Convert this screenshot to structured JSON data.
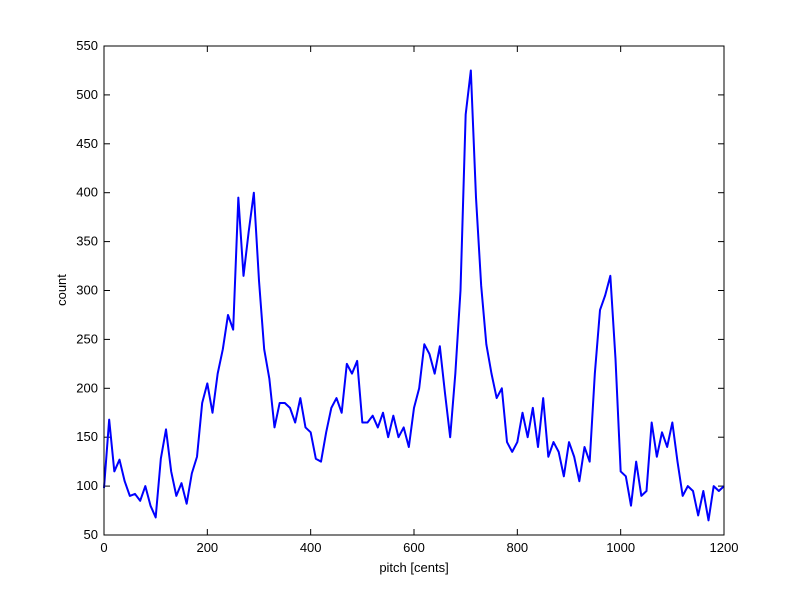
{
  "chart_data": {
    "type": "line",
    "x_label": "pitch [cents]",
    "y_label": "count",
    "x": [
      0,
      10,
      20,
      30,
      40,
      50,
      60,
      70,
      80,
      90,
      100,
      110,
      120,
      130,
      140,
      150,
      160,
      170,
      180,
      190,
      200,
      210,
      220,
      230,
      240,
      250,
      260,
      270,
      280,
      290,
      300,
      310,
      320,
      330,
      340,
      350,
      360,
      370,
      380,
      390,
      400,
      410,
      420,
      430,
      440,
      450,
      460,
      470,
      480,
      490,
      500,
      510,
      520,
      530,
      540,
      550,
      560,
      570,
      580,
      590,
      600,
      610,
      620,
      630,
      640,
      650,
      660,
      670,
      680,
      690,
      700,
      710,
      720,
      730,
      740,
      750,
      760,
      770,
      780,
      790,
      800,
      810,
      820,
      830,
      840,
      850,
      860,
      870,
      880,
      890,
      900,
      910,
      920,
      930,
      940,
      950,
      960,
      970,
      980,
      990,
      1000,
      1010,
      1020,
      1030,
      1040,
      1050,
      1060,
      1070,
      1080,
      1090,
      1100,
      1110,
      1120,
      1130,
      1140,
      1150,
      1160,
      1170,
      1180,
      1190,
      1200
    ],
    "values": [
      98,
      168,
      115,
      127,
      105,
      90,
      92,
      85,
      100,
      80,
      68,
      128,
      158,
      115,
      90,
      103,
      82,
      113,
      130,
      185,
      205,
      175,
      215,
      240,
      275,
      260,
      395,
      315,
      360,
      400,
      310,
      240,
      210,
      160,
      185,
      185,
      180,
      165,
      190,
      160,
      155,
      128,
      125,
      155,
      180,
      190,
      175,
      225,
      215,
      228,
      165,
      165,
      172,
      160,
      175,
      150,
      172,
      150,
      160,
      140,
      180,
      200,
      245,
      235,
      215,
      243,
      195,
      150,
      215,
      300,
      480,
      525,
      395,
      305,
      245,
      215,
      190,
      200,
      145,
      135,
      145,
      175,
      150,
      180,
      140,
      190,
      130,
      145,
      135,
      110,
      145,
      130,
      105,
      140,
      125,
      215,
      280,
      295,
      315,
      230,
      115,
      110,
      80,
      125,
      90,
      95,
      165,
      130,
      155,
      140,
      165,
      125,
      90,
      100,
      95,
      70,
      95,
      65,
      100,
      95,
      100
    ],
    "color": "#0000ff",
    "xlim": [
      0,
      1200
    ],
    "xticks": [
      0,
      200,
      400,
      600,
      800,
      1000,
      1200
    ],
    "ylim": [
      50,
      550
    ],
    "yticks": [
      50,
      100,
      150,
      200,
      250,
      300,
      350,
      400,
      450,
      500,
      550
    ]
  }
}
